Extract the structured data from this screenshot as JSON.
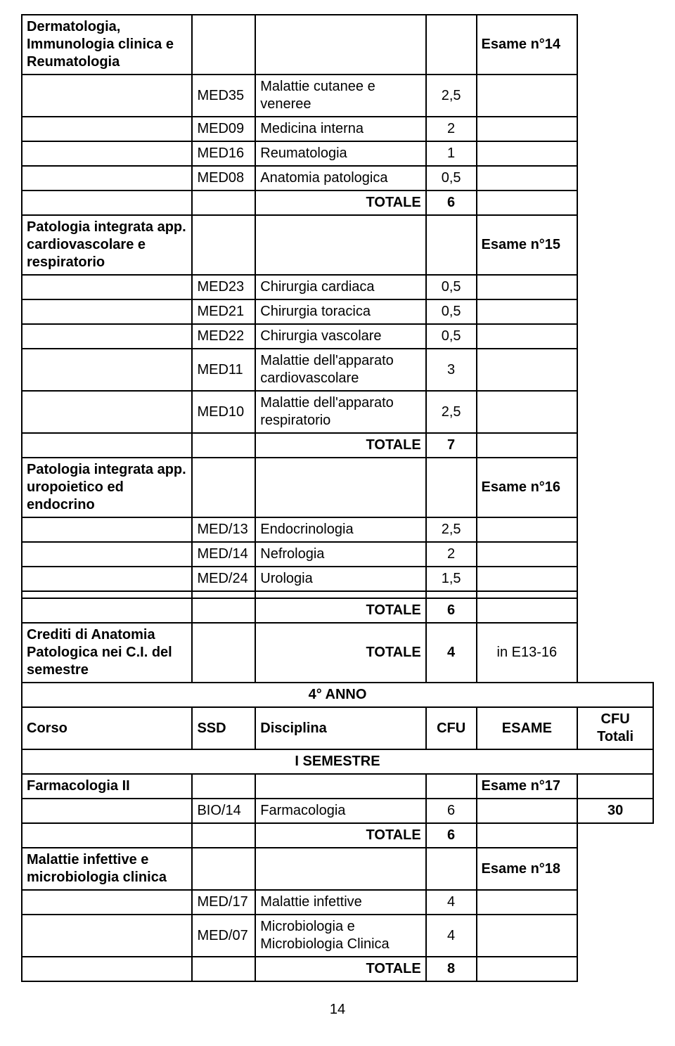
{
  "sections": {
    "s1": {
      "title": "Dermatologia, Immunologia clinica e Reumatologia",
      "exam": "Esame n°14",
      "rows": [
        {
          "ssd": "MED35",
          "disc": "Malattie cutanee e veneree",
          "cfu": "2,5"
        },
        {
          "ssd": "MED09",
          "disc": "Medicina interna",
          "cfu": "2"
        },
        {
          "ssd": "MED16",
          "disc": "Reumatologia",
          "cfu": "1"
        },
        {
          "ssd": "MED08",
          "disc": "Anatomia patologica",
          "cfu": "0,5"
        }
      ],
      "total_label": "TOTALE",
      "total": "6"
    },
    "s2": {
      "title": "Patologia integrata app. cardiovascolare e respiratorio",
      "exam": "Esame n°15",
      "rows": [
        {
          "ssd": "MED23",
          "disc": "Chirurgia cardiaca",
          "cfu": "0,5"
        },
        {
          "ssd": "MED21",
          "disc": "Chirurgia toracica",
          "cfu": "0,5"
        },
        {
          "ssd": "MED22",
          "disc": "Chirurgia vascolare",
          "cfu": "0,5"
        },
        {
          "ssd": "MED11",
          "disc": "Malattie dell'apparato cardiovascolare",
          "cfu": "3"
        },
        {
          "ssd": "MED10",
          "disc": "Malattie dell'apparato respiratorio",
          "cfu": "2,5"
        }
      ],
      "total_label": "TOTALE",
      "total": "7"
    },
    "s3": {
      "title": "Patologia integrata app. uropoietico ed endocrino",
      "exam": "Esame n°16",
      "rows": [
        {
          "ssd": "MED/13",
          "disc": "Endocrinologia",
          "cfu": "2,5"
        },
        {
          "ssd": "MED/14",
          "disc": "Nefrologia",
          "cfu": "2"
        },
        {
          "ssd": "MED/24",
          "disc": "Urologia",
          "cfu": "1,5"
        }
      ],
      "total_label": "TOTALE",
      "total": "6"
    },
    "credits": {
      "title": "Crediti di Anatomia Patologica nei C.I. del semestre",
      "total_label": "TOTALE",
      "total": "4",
      "note": "in E13-16"
    },
    "year_header": "4° ANNO",
    "columns": {
      "corso": "Corso",
      "ssd": "SSD",
      "disc": "Disciplina",
      "cfu": "CFU",
      "esame": "ESAME",
      "cfu_tot": "CFU Totali"
    },
    "semester": "I SEMESTRE",
    "s4": {
      "title": "Farmacologia II",
      "exam": "Esame n°17",
      "rows": [
        {
          "ssd": "BIO/14",
          "disc": "Farmacologia",
          "cfu": "6"
        }
      ],
      "right_total": "30",
      "total_label": "TOTALE",
      "total": "6"
    },
    "s5": {
      "title": "Malattie infettive e microbiologia clinica",
      "exam": "Esame n°18",
      "rows": [
        {
          "ssd": "MED/17",
          "disc": "Malattie infettive",
          "cfu": "4"
        },
        {
          "ssd": "MED/07",
          "disc": "Microbiologia e Microbiologia Clinica",
          "cfu": "4"
        }
      ],
      "total_label": "TOTALE",
      "total": "8"
    }
  },
  "page_number": "14"
}
